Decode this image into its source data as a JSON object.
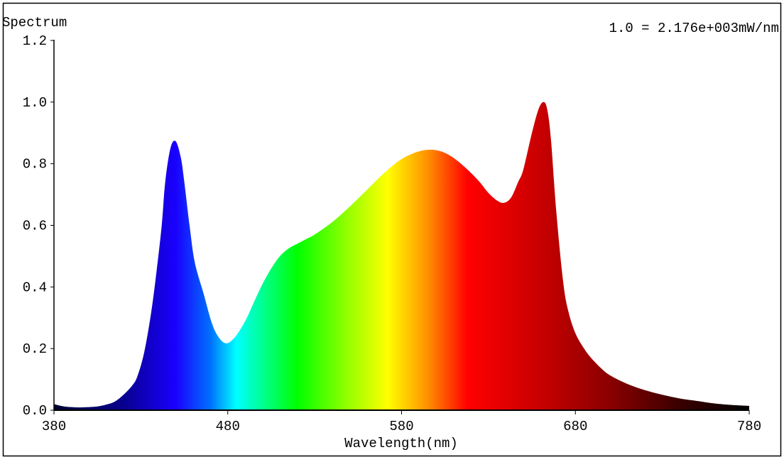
{
  "chart_data": {
    "type": "area",
    "title": "Spectrum",
    "annotation": "1.0 = 2.176e+003mW/nm",
    "xlabel": "Wavelength(nm)",
    "ylabel": "Spectrum",
    "xlim": [
      380,
      780
    ],
    "ylim": [
      0,
      1.2
    ],
    "xticks": [
      380,
      480,
      580,
      680,
      780
    ],
    "xtick_labels": [
      "380",
      "480",
      "580",
      "680",
      "780"
    ],
    "yticks": [
      0,
      0.2,
      0.4,
      0.6,
      0.8,
      1.0,
      1.2
    ],
    "ytick_labels": [
      "0.0",
      "0.2",
      "0.4",
      "0.6",
      "0.8",
      "1.0",
      "1.2"
    ],
    "grid": false,
    "x": [
      380,
      385,
      390,
      395,
      400,
      405,
      410,
      415,
      420,
      425,
      428,
      432,
      436,
      439,
      442,
      444,
      447,
      450,
      453,
      455,
      458,
      461,
      466,
      471,
      475,
      479,
      483,
      487,
      491,
      495,
      500,
      505,
      510,
      515,
      520,
      525,
      530,
      540,
      550,
      560,
      570,
      580,
      590,
      598,
      605,
      612,
      619,
      625,
      630,
      635,
      639,
      643,
      647,
      650,
      655,
      659,
      662,
      664,
      666,
      669,
      673,
      676,
      680,
      685,
      689,
      695,
      700,
      710,
      720,
      730,
      740,
      750,
      760,
      770,
      780
    ],
    "y": [
      0.02,
      0.013,
      0.01,
      0.009,
      0.01,
      0.012,
      0.018,
      0.028,
      0.05,
      0.08,
      0.11,
      0.19,
      0.32,
      0.45,
      0.6,
      0.74,
      0.85,
      0.873,
      0.82,
      0.74,
      0.6,
      0.48,
      0.38,
      0.28,
      0.235,
      0.217,
      0.23,
      0.26,
      0.3,
      0.35,
      0.41,
      0.46,
      0.5,
      0.525,
      0.54,
      0.555,
      0.57,
      0.61,
      0.66,
      0.715,
      0.77,
      0.815,
      0.84,
      0.845,
      0.835,
      0.81,
      0.775,
      0.74,
      0.705,
      0.68,
      0.673,
      0.69,
      0.74,
      0.78,
      0.9,
      0.98,
      1.0,
      0.97,
      0.875,
      0.645,
      0.415,
      0.32,
      0.25,
      0.2,
      0.17,
      0.135,
      0.113,
      0.085,
      0.065,
      0.05,
      0.038,
      0.03,
      0.022,
      0.017,
      0.014
    ],
    "fill_gradient": [
      {
        "nm": 380,
        "color": "#000030"
      },
      {
        "nm": 420,
        "color": "#08008f"
      },
      {
        "nm": 450,
        "color": "#1a00ff"
      },
      {
        "nm": 470,
        "color": "#0070ff"
      },
      {
        "nm": 485,
        "color": "#00ffff"
      },
      {
        "nm": 500,
        "color": "#00ff90"
      },
      {
        "nm": 520,
        "color": "#00ff00"
      },
      {
        "nm": 548,
        "color": "#90ff00"
      },
      {
        "nm": 572,
        "color": "#ffff00"
      },
      {
        "nm": 595,
        "color": "#ff9000"
      },
      {
        "nm": 618,
        "color": "#ff0000"
      },
      {
        "nm": 660,
        "color": "#c80000"
      },
      {
        "nm": 700,
        "color": "#8a0000"
      },
      {
        "nm": 740,
        "color": "#3a0000"
      },
      {
        "nm": 780,
        "color": "#000000"
      }
    ]
  }
}
